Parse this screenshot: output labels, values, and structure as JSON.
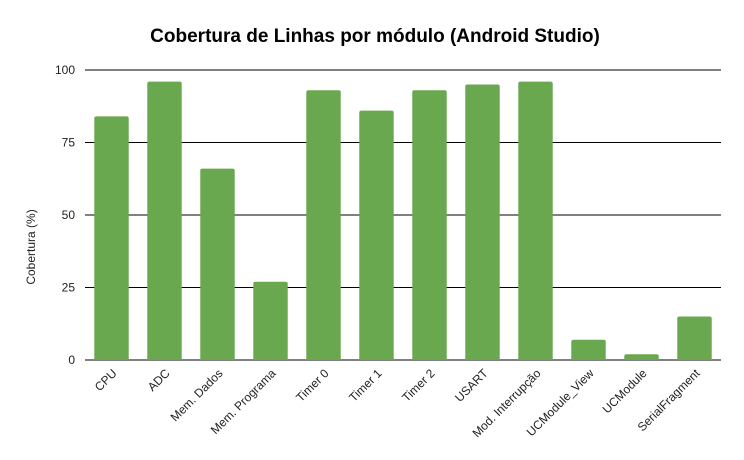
{
  "chart_data": {
    "type": "bar",
    "title": "Cobertura de Linhas por módulo (Android Studio)",
    "xlabel": "",
    "ylabel": "Cobertura (%)",
    "ylim": [
      0,
      100
    ],
    "yticks": [
      "0",
      "25",
      "50",
      "75",
      "100"
    ],
    "grid": true,
    "categories": [
      "CPU",
      "ADC",
      "Mem. Dados",
      "Mem. Programa",
      "Timer 0",
      "Timer 1",
      "Timer 2",
      "USART",
      "Mod. Interrupção",
      "UCModule_View",
      "UCModule",
      "SerialFragment"
    ],
    "values": [
      84,
      96,
      66,
      27,
      93,
      86,
      93,
      95,
      96,
      7,
      2,
      15
    ],
    "bar_color": "#6aa84f"
  }
}
